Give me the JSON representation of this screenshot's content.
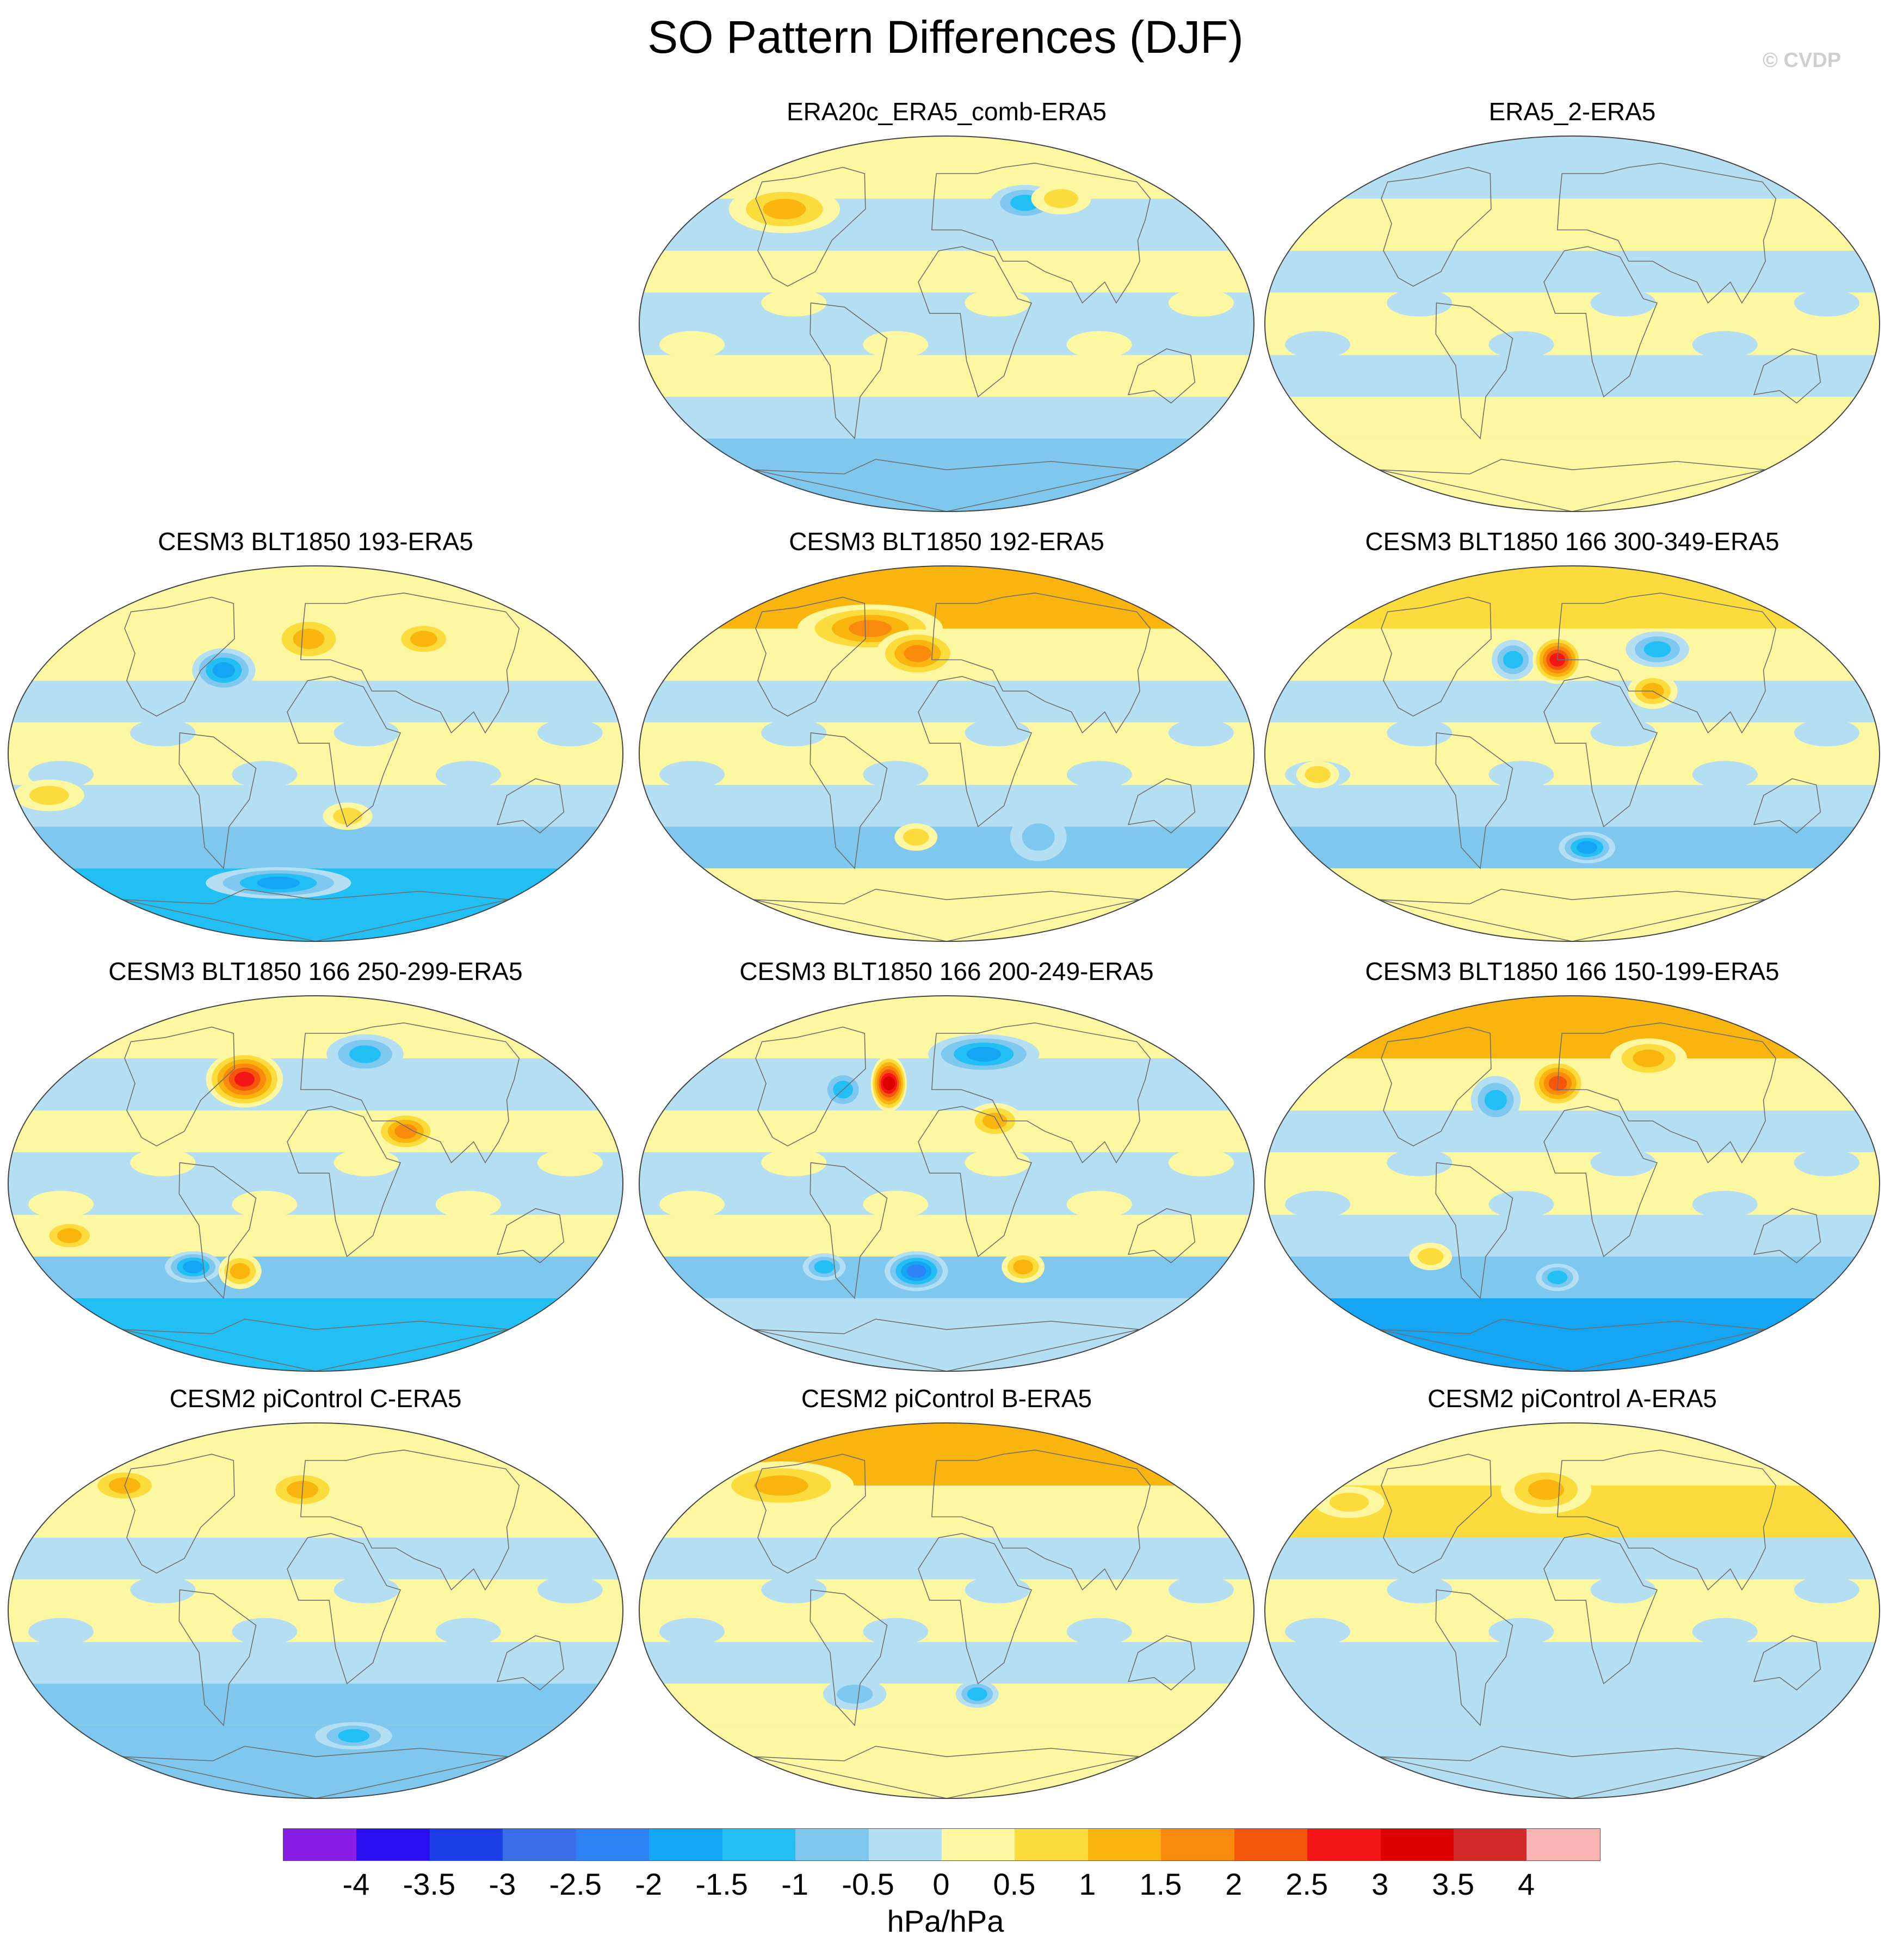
{
  "title": "SO Pattern Differences (DJF)",
  "credit": "© CVDP",
  "chart_data": {
    "type": "map",
    "projection": "Robinson-like global ellipse",
    "variable": "SO pattern difference",
    "units": "hPa/hPa",
    "panels": [
      {
        "id": "era20c",
        "title": "ERA20c_ERA5_comb-ERA5",
        "bands": [
          0.3,
          -0.3,
          0.3,
          -0.3,
          0.3,
          -0.3,
          -0.8
        ],
        "blobs": [
          [
            -120,
            55,
            30,
            10,
            1.1
          ],
          [
            60,
            58,
            18,
            7,
            -1.2
          ],
          [
            90,
            60,
            15,
            6,
            0.8
          ]
        ]
      },
      {
        "id": "era5_2",
        "title": "ERA5_2-ERA5",
        "bands": [
          -0.3,
          0.3,
          -0.3,
          0.3,
          -0.3,
          0.3,
          0.3
        ],
        "blobs": []
      },
      {
        "id": "blt193",
        "title": "CESM3 BLT1850 193-ERA5",
        "bands": [
          0.3,
          0.3,
          -0.3,
          0.3,
          -0.3,
          -0.8,
          -1.3
        ],
        "blobs": [
          [
            -60,
            40,
            16,
            9,
            -1.6
          ],
          [
            -5,
            55,
            20,
            10,
            1.4
          ],
          [
            80,
            55,
            16,
            7,
            1.1
          ],
          [
            -160,
            -20,
            18,
            6,
            1.0
          ],
          [
            20,
            -30,
            12,
            5,
            0.9
          ],
          [
            -30,
            -62,
            40,
            6,
            -1.8
          ]
        ]
      },
      {
        "id": "blt192",
        "title": "CESM3 BLT1850 192-ERA5",
        "bands": [
          1.1,
          0.3,
          -0.3,
          0.3,
          -0.3,
          -0.8,
          0.3
        ],
        "blobs": [
          [
            -60,
            60,
            40,
            10,
            1.8
          ],
          [
            -20,
            48,
            22,
            10,
            2.0
          ],
          [
            -20,
            -40,
            10,
            5,
            1.0
          ],
          [
            60,
            -40,
            14,
            10,
            -0.9
          ]
        ]
      },
      {
        "id": "blt166_300",
        "title": "CESM3 BLT1850 166 300-349-ERA5",
        "bands": [
          0.6,
          0.3,
          -0.3,
          0.3,
          -0.3,
          -0.8,
          0.3
        ],
        "blobs": [
          [
            -40,
            45,
            10,
            8,
            -1.4
          ],
          [
            -10,
            45,
            12,
            10,
            2.6
          ],
          [
            60,
            50,
            16,
            7,
            -1.5
          ],
          [
            50,
            30,
            12,
            7,
            1.3
          ],
          [
            10,
            -45,
            14,
            6,
            -1.6
          ],
          [
            -150,
            -10,
            10,
            5,
            1.0
          ]
        ]
      },
      {
        "id": "blt166_250",
        "title": "CESM3 BLT1850 166 250-299-ERA5",
        "bands": [
          0.3,
          -0.3,
          0.3,
          -0.3,
          0.3,
          -0.8,
          -1.3
        ],
        "blobs": [
          [
            -50,
            50,
            20,
            12,
            2.8
          ],
          [
            40,
            62,
            20,
            8,
            -1.3
          ],
          [
            55,
            25,
            16,
            8,
            1.6
          ],
          [
            -150,
            -25,
            14,
            6,
            1.1
          ],
          [
            -80,
            -40,
            14,
            6,
            -1.6
          ],
          [
            -50,
            -42,
            10,
            7,
            1.5
          ]
        ]
      },
      {
        "id": "blt166_200",
        "title": "CESM3 BLT1850 166 200-249-ERA5",
        "bands": [
          0.3,
          -0.3,
          0.3,
          -0.3,
          0.3,
          -0.8,
          -0.3
        ],
        "blobs": [
          [
            -70,
            45,
            10,
            8,
            -1.4
          ],
          [
            -40,
            48,
            8,
            12,
            3.1
          ],
          [
            30,
            62,
            30,
            8,
            -1.6
          ],
          [
            30,
            30,
            14,
            7,
            1.4
          ],
          [
            -20,
            -42,
            16,
            8,
            -2.2
          ],
          [
            50,
            -40,
            10,
            6,
            1.5
          ],
          [
            -80,
            -40,
            10,
            5,
            -1.2
          ]
        ]
      },
      {
        "id": "blt166_150",
        "title": "CESM3 BLT1850 166 150-199-ERA5",
        "bands": [
          1.0,
          0.3,
          -0.3,
          0.3,
          -0.3,
          -1.0,
          -1.9
        ],
        "blobs": [
          [
            -50,
            40,
            12,
            10,
            -1.3
          ],
          [
            -10,
            48,
            14,
            10,
            2.5
          ],
          [
            60,
            60,
            20,
            8,
            1.2
          ],
          [
            -90,
            -35,
            10,
            5,
            1.0
          ],
          [
            -10,
            -45,
            10,
            5,
            -1.3
          ]
        ]
      },
      {
        "id": "pic_c",
        "title": "CESM2 piControl C-ERA5",
        "bands": [
          0.3,
          0.3,
          -0.3,
          0.3,
          -0.3,
          -0.8,
          -1.0
        ],
        "blobs": [
          [
            -10,
            58,
            20,
            8,
            1.3
          ],
          [
            -150,
            60,
            20,
            7,
            1.1
          ],
          [
            30,
            -60,
            20,
            5,
            -1.4
          ]
        ]
      },
      {
        "id": "pic_b",
        "title": "CESM2 piControl B-ERA5",
        "bands": [
          1.1,
          0.3,
          -0.3,
          0.3,
          -0.3,
          0.3,
          0.3
        ],
        "blobs": [
          [
            -130,
            60,
            40,
            10,
            1.3
          ],
          [
            -60,
            -40,
            16,
            6,
            -0.9
          ],
          [
            20,
            -40,
            10,
            5,
            -1.3
          ]
        ]
      },
      {
        "id": "pic_a",
        "title": "CESM2 piControl A-ERA5",
        "bands": [
          0.3,
          0.6,
          -0.3,
          0.3,
          -0.3,
          -0.3,
          -0.3
        ],
        "blobs": [
          [
            -20,
            58,
            24,
            10,
            1.4
          ],
          [
            -160,
            52,
            18,
            6,
            1.0
          ]
        ]
      }
    ],
    "colorbar": {
      "levels": [
        -4,
        -3.5,
        -3,
        -2.5,
        -2,
        -1.5,
        -1,
        -0.5,
        0,
        0.5,
        1,
        1.5,
        2,
        2.5,
        3,
        3.5,
        4
      ],
      "tick_labels": [
        "-4",
        "-3.5",
        "-3",
        "-2.5",
        "-2",
        "-1.5",
        "-1",
        "-0.5",
        "0",
        "0.5",
        "1",
        "1.5",
        "2",
        "2.5",
        "3",
        "3.5",
        "4"
      ],
      "colors": [
        "#8a1ee8",
        "#2a10f0",
        "#1b3ee6",
        "#3a6ee8",
        "#2d82f5",
        "#15a5f5",
        "#22bff5",
        "#7ec8f0",
        "#b4dff2",
        "#fcf7a0",
        "#fbdc3c",
        "#f9b40e",
        "#f98a0c",
        "#f6550c",
        "#f41616",
        "#dc0000",
        "#d42a2a",
        "#fbb4b4"
      ],
      "units": "hPa/hPa"
    }
  }
}
